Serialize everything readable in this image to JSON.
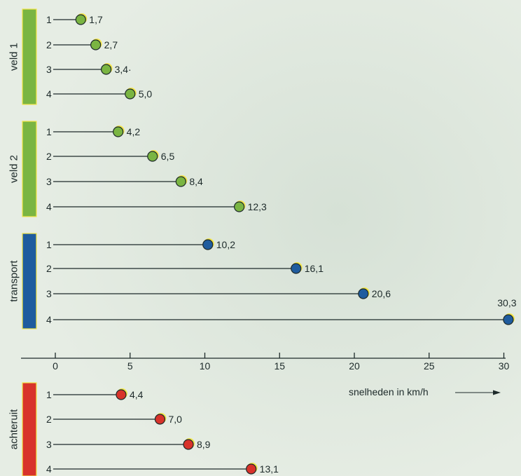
{
  "chart_data": {
    "type": "scatter",
    "title": "",
    "xlabel": "snelheden in km/h",
    "xlim": [
      0,
      30
    ],
    "xticks": [
      0,
      5,
      10,
      15,
      20,
      25,
      30
    ],
    "grid": false,
    "groups": [
      {
        "name": "veld 1",
        "color": "#7ab542",
        "gears": [
          "1",
          "2",
          "3",
          "4"
        ],
        "values": [
          1.7,
          2.7,
          3.4,
          5.0
        ],
        "labels": [
          "1,7",
          "2,7",
          "3,4·",
          "5,0"
        ]
      },
      {
        "name": "veld 2",
        "color": "#7ab542",
        "gears": [
          "1",
          "2",
          "3",
          "4"
        ],
        "values": [
          4.2,
          6.5,
          8.4,
          12.3
        ],
        "labels": [
          "4,2",
          "6,5",
          "8,4",
          "12,3"
        ]
      },
      {
        "name": "transport",
        "color": "#1f5c9e",
        "gears": [
          "1",
          "2",
          "3",
          "4"
        ],
        "values": [
          10.2,
          16.1,
          20.6,
          30.3
        ],
        "labels": [
          "10,2",
          "16,1",
          "20,6",
          "30,3"
        ]
      },
      {
        "name": "achteruit",
        "color": "#d8332b",
        "gears": [
          "1",
          "2",
          "3",
          "4"
        ],
        "values": [
          4.4,
          7.0,
          8.9,
          13.1
        ],
        "labels": [
          "4,4",
          "7,0",
          "8,9",
          "13,1"
        ]
      }
    ]
  }
}
